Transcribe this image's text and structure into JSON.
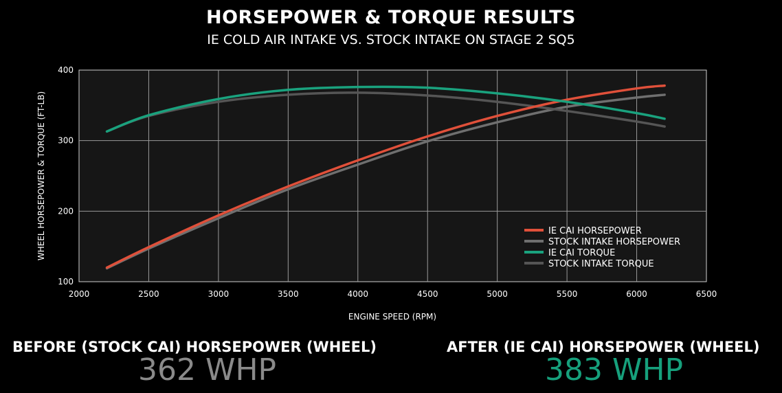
{
  "header": {
    "title": "HORSEPOWER & TORQUE RESULTS",
    "subtitle": "IE COLD AIR INTAKE VS. STOCK INTAKE ON STAGE 2 SQ5"
  },
  "chart_data": {
    "type": "line",
    "title": "HORSEPOWER & TORQUE RESULTS",
    "subtitle": "IE COLD AIR INTAKE VS. STOCK INTAKE ON STAGE 2 SQ5",
    "xlabel": "ENGINE SPEED (RPM)",
    "ylabel": "WHEEL HORSEPOWER & TORQUE (FT-LB)",
    "xlim": [
      2000,
      6500
    ],
    "ylim": [
      100,
      400
    ],
    "x_ticks": [
      2000,
      2500,
      3000,
      3500,
      4000,
      4500,
      5000,
      5500,
      6000,
      6500
    ],
    "y_ticks": [
      100,
      200,
      300,
      400
    ],
    "grid": true,
    "legend_position": "bottom-right",
    "x": [
      2200,
      2500,
      3000,
      3500,
      4000,
      4500,
      5000,
      5500,
      6000,
      6200
    ],
    "series": [
      {
        "name": "IE CAI HORSEPOWER",
        "color": "#e0503a",
        "values": [
          120,
          149,
          194,
          235,
          272,
          306,
          335,
          358,
          374,
          378
        ]
      },
      {
        "name": "STOCK INTAKE HORSEPOWER",
        "color": "#6f6f6f",
        "values": [
          119,
          147,
          190,
          231,
          266,
          299,
          326,
          348,
          361,
          365
        ]
      },
      {
        "name": "IE CAI TORQUE",
        "color": "#1aa27e",
        "values": [
          313,
          336,
          359,
          372,
          376,
          375,
          367,
          355,
          339,
          331
        ]
      },
      {
        "name": "STOCK INTAKE TORQUE",
        "color": "#555555",
        "values": [
          313,
          335,
          355,
          365,
          368,
          364,
          355,
          342,
          327,
          320
        ]
      }
    ]
  },
  "summary": {
    "before_label": "BEFORE (STOCK CAI) HORSEPOWER (WHEEL)",
    "before_value": "362 WHP",
    "before_color": "#8a8a8a",
    "after_label": "AFTER (IE CAI) HORSEPOWER (WHEEL)",
    "after_value": "383 WHP",
    "after_color": "#16a07c"
  }
}
